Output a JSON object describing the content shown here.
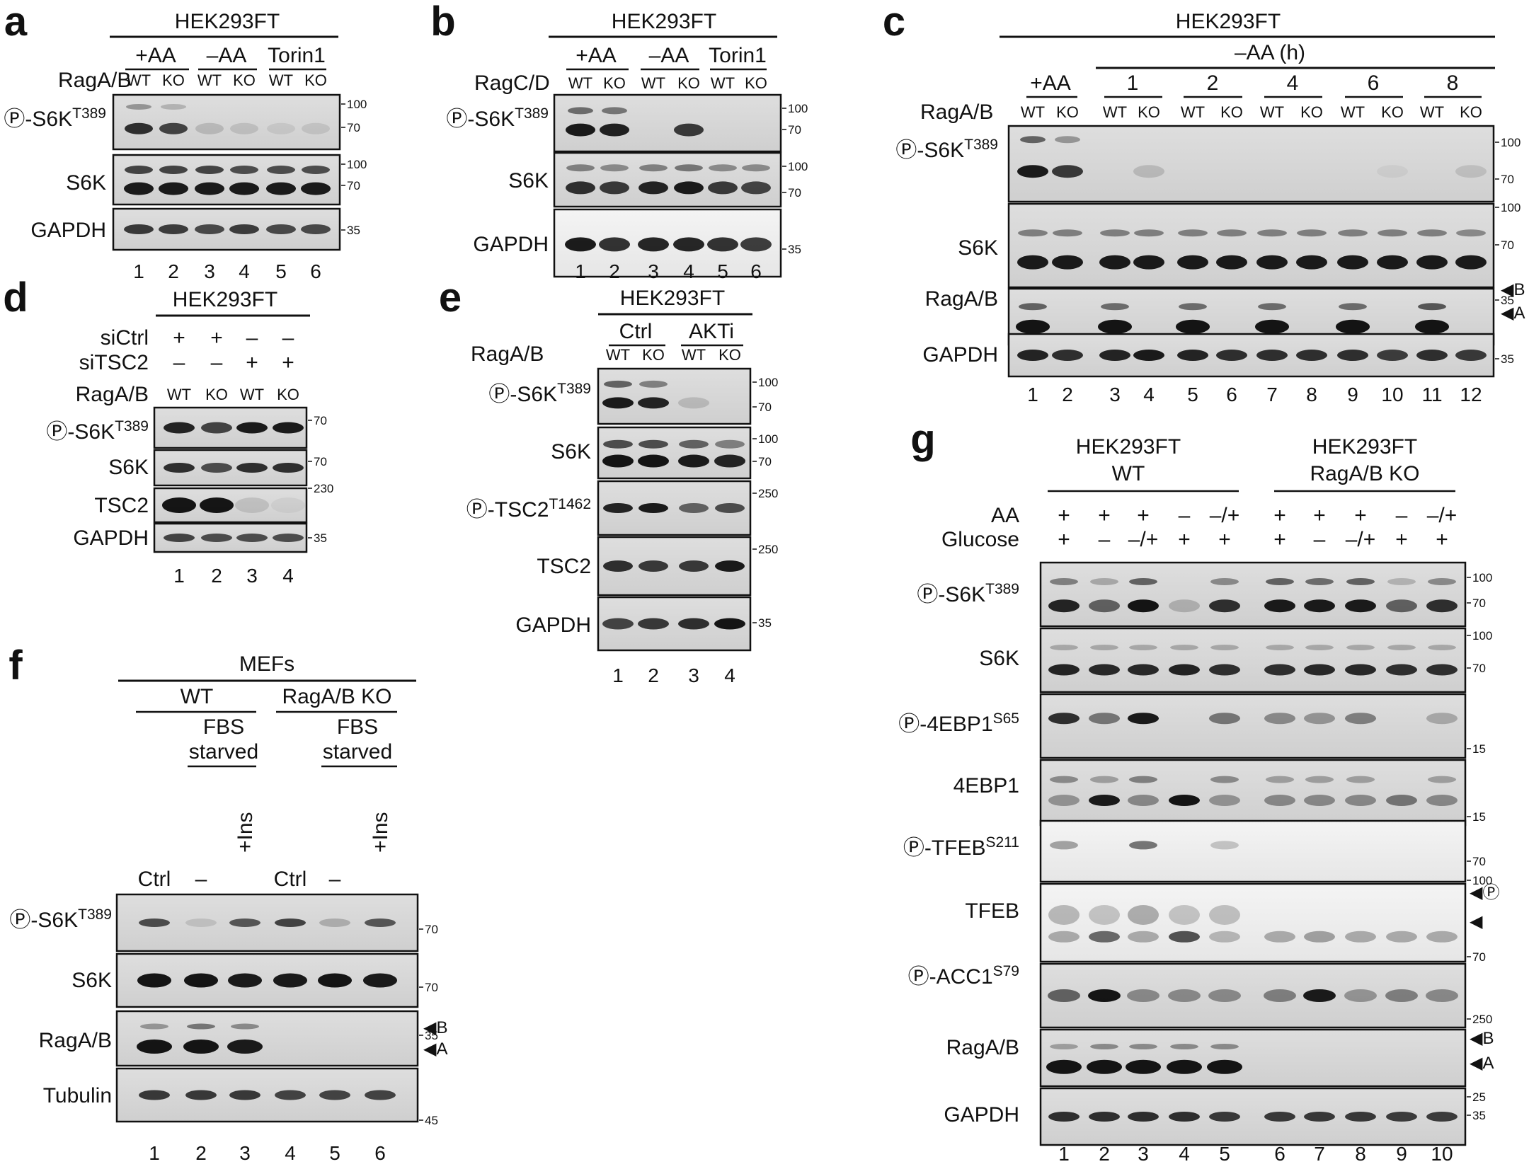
{
  "panels": [
    {
      "letter": "a",
      "header": "HEK293FT",
      "conditions": [
        "+AA",
        "–AA",
        "Torin1"
      ],
      "genotype_label": "RagA/B",
      "genotypes": [
        "WT",
        "KO",
        "WT",
        "KO",
        "WT",
        "KO"
      ],
      "blots": [
        "Ⓟ-S6K T389",
        "S6K",
        "GAPDH"
      ],
      "markers": [
        "100",
        "70",
        "100",
        "70",
        "35"
      ],
      "lanes": [
        "1",
        "2",
        "3",
        "4",
        "5",
        "6"
      ]
    },
    {
      "letter": "b",
      "header": "HEK293FT",
      "conditions": [
        "+AA",
        "–AA",
        "Torin1"
      ],
      "genotype_label": "RagC/D",
      "genotypes": [
        "WT",
        "KO",
        "WT",
        "KO",
        "WT",
        "KO"
      ],
      "blots": [
        "Ⓟ-S6K T389",
        "S6K",
        "GAPDH"
      ],
      "markers": [
        "100",
        "70",
        "100",
        "70",
        "35"
      ],
      "lanes": [
        "1",
        "2",
        "3",
        "4",
        "5",
        "6"
      ]
    },
    {
      "letter": "c",
      "header": "HEK293FT",
      "subheader": "–AA (h)",
      "conditions": [
        "+AA",
        "1",
        "2",
        "4",
        "6",
        "8"
      ],
      "genotype_label": "RagA/B",
      "genotypes": [
        "WT",
        "KO",
        "WT",
        "KO",
        "WT",
        "KO",
        "WT",
        "KO",
        "WT",
        "KO",
        "WT",
        "KO"
      ],
      "blots": [
        "Ⓟ-S6K T389",
        "S6K",
        "RagA/B",
        "GAPDH"
      ],
      "markers": [
        "100",
        "70",
        "100",
        "70",
        "35",
        "35"
      ],
      "arrows": [
        "◀B",
        "◀A"
      ],
      "lanes": [
        "1",
        "2",
        "3",
        "4",
        "5",
        "6",
        "7",
        "8",
        "9",
        "10",
        "11",
        "12"
      ]
    },
    {
      "letter": "d",
      "header": "HEK293FT",
      "rows": [
        {
          "label": "siCtrl",
          "values": [
            "+",
            "+",
            "–",
            "–"
          ]
        },
        {
          "label": "siTSC2",
          "values": [
            "–",
            "–",
            "+",
            "+"
          ]
        }
      ],
      "genotype_label": "RagA/B",
      "genotypes": [
        "WT",
        "KO",
        "WT",
        "KO"
      ],
      "blots": [
        "Ⓟ-S6K T389",
        "S6K",
        "TSC2",
        "GAPDH"
      ],
      "markers": [
        "70",
        "70",
        "230",
        "35"
      ],
      "lanes": [
        "1",
        "2",
        "3",
        "4"
      ]
    },
    {
      "letter": "e",
      "header": "HEK293FT",
      "conditions": [
        "Ctrl",
        "AKTi"
      ],
      "genotype_label": "RagA/B",
      "genotypes": [
        "WT",
        "KO",
        "WT",
        "KO"
      ],
      "blots": [
        "Ⓟ-S6K T389",
        "S6K",
        "Ⓟ-TSC2 T1462",
        "TSC2",
        "GAPDH"
      ],
      "markers": [
        "100",
        "70",
        "100",
        "70",
        "250",
        "250",
        "35"
      ],
      "lanes": [
        "1",
        "2",
        "3",
        "4"
      ]
    },
    {
      "letter": "f",
      "header": "MEFs",
      "groups": [
        "WT",
        "RagA/B KO"
      ],
      "sub_groups": [
        "FBS starved",
        "FBS starved"
      ],
      "treatments": [
        "Ctrl",
        "–",
        "+Ins",
        "Ctrl",
        "–",
        "+Ins"
      ],
      "blots": [
        "Ⓟ-S6K T389",
        "S6K",
        "RagA/B",
        "Tubulin"
      ],
      "markers": [
        "70",
        "70",
        "35",
        "45"
      ],
      "arrows": [
        "◀B",
        "◀A"
      ],
      "lanes": [
        "1",
        "2",
        "3",
        "4",
        "5",
        "6"
      ]
    },
    {
      "letter": "g",
      "groups": [
        "HEK293FT WT",
        "HEK293FT RagA/B KO"
      ],
      "rows": [
        {
          "label": "AA",
          "values": [
            "+",
            "+",
            "+",
            "–",
            "–/+",
            "+",
            "+",
            "+",
            "–",
            "–/+"
          ]
        },
        {
          "label": "Glucose",
          "values": [
            "+",
            "–",
            "–/+",
            "+",
            "+",
            "+",
            "–",
            "–/+",
            "+",
            "+"
          ]
        }
      ],
      "blots": [
        "Ⓟ-S6K T389",
        "S6K",
        "Ⓟ-4EBP1 S65",
        "4EBP1",
        "Ⓟ-TFEB S211",
        "TFEB",
        "Ⓟ-ACC1 S79",
        "RagA/B",
        "GAPDH"
      ],
      "markers": [
        "100",
        "70",
        "100",
        "70",
        "15",
        "15",
        "70",
        "100",
        "70",
        "250",
        "25",
        "35"
      ],
      "arrows": [
        "◀Ⓟ",
        "◀",
        "◀B",
        "◀A"
      ],
      "lanes": [
        "1",
        "2",
        "3",
        "4",
        "5",
        "6",
        "7",
        "8",
        "9",
        "10"
      ]
    }
  ]
}
